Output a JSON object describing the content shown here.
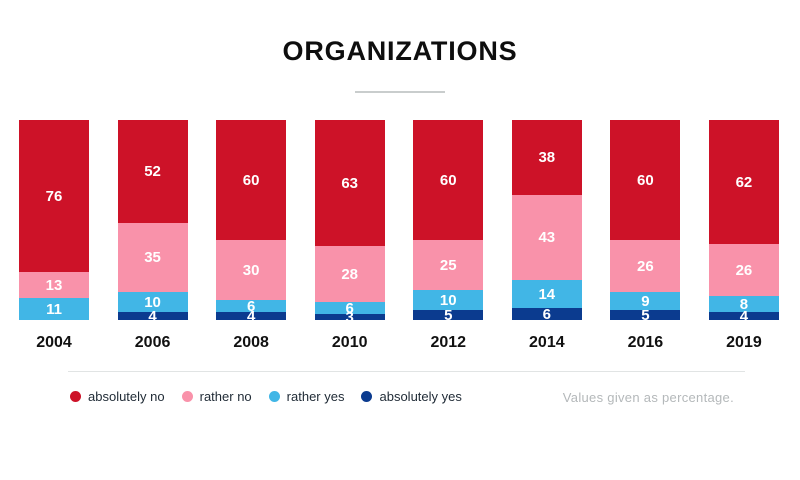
{
  "chart_data": {
    "type": "bar",
    "stacked": true,
    "title": "ORGANIZATIONS",
    "unit": "percent",
    "categories": [
      "2004",
      "2006",
      "2008",
      "2010",
      "2012",
      "2014",
      "2016",
      "2019"
    ],
    "series": [
      {
        "name": "absolutely no",
        "color": "#cd1228",
        "values": [
          76,
          52,
          60,
          63,
          60,
          38,
          60,
          62
        ]
      },
      {
        "name": "rather no",
        "color": "#f992aa",
        "values": [
          13,
          35,
          30,
          28,
          25,
          43,
          26,
          26
        ]
      },
      {
        "name": "rather yes",
        "color": "#41b6e6",
        "values": [
          11,
          10,
          6,
          6,
          10,
          14,
          9,
          8
        ]
      },
      {
        "name": "absolutely yes",
        "color": "#0b3b8f",
        "values": [
          0,
          4,
          4,
          3,
          5,
          6,
          5,
          4
        ]
      }
    ],
    "value_labels": true,
    "value_label_color": "#ffffff",
    "ylim": [
      0,
      100
    ],
    "grid": false,
    "legend_position": "bottom",
    "note": "Values given as percentage."
  },
  "styles": {
    "title_color": "#0e0e0e",
    "title_rule_color": "#c9cdcd",
    "divider_color": "#e1e4e4",
    "year_label_color": "#111111",
    "legend_text_color": "#1f2a35",
    "note_color": "#b4b8ba",
    "background": "#ffffff"
  }
}
